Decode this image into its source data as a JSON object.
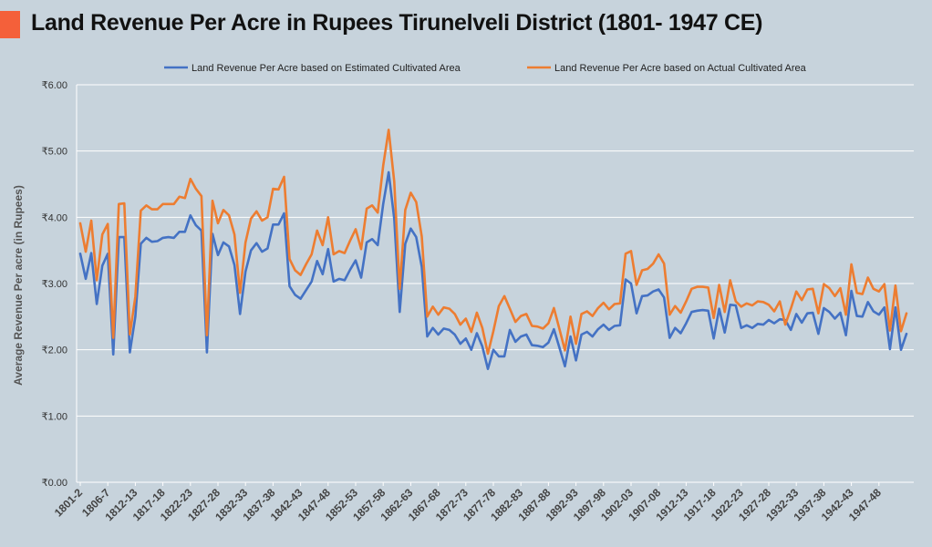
{
  "title": "Land Revenue Per Acre in Rupees Tirunelveli District (1801- 1947 CE)",
  "colors": {
    "background": "#c7d3dc",
    "accent": "#f4603a",
    "grid": "#ffffff"
  },
  "chart_data": {
    "type": "line",
    "title": "Land Revenue Per Acre in Rupees Tirunelveli District (1801- 1947 CE)",
    "xlabel": "",
    "ylabel": "Average Revenue Per acre  (in Rupees)",
    "ylim": [
      0,
      6
    ],
    "yticks": [
      "₹0.00",
      "₹1.00",
      "₹2.00",
      "₹3.00",
      "₹4.00",
      "₹5.00",
      "₹6.00"
    ],
    "grid": "horizontal",
    "legend": "top",
    "x_tick_labels": [
      "1801-2",
      "1806-7",
      "1812-13",
      "1817-18",
      "1822-23",
      "1827-28",
      "1832-33",
      "1837-38",
      "1842-43",
      "1847-48",
      "1852-53",
      "1857-58",
      "1862-63",
      "1867-68",
      "1872-73",
      "1877-78",
      "1882-83",
      "1887-88",
      "1892-93",
      "1897-98",
      "1902-03",
      "1907-08",
      "1912-13",
      "1917-18",
      "1922-23",
      "1927-28",
      "1932-33",
      "1937-38",
      "1942-43",
      "1947-48"
    ],
    "x_tick_indices": [
      0,
      5,
      10,
      15,
      20,
      25,
      30,
      35,
      40,
      45,
      50,
      55,
      60,
      65,
      70,
      75,
      80,
      85,
      90,
      95,
      100,
      105,
      110,
      115,
      120,
      125,
      130,
      135,
      140,
      145
    ],
    "series": [
      {
        "name": "Land Revenue Per Acre based on Estimated Cultivated Area",
        "color": "#4472c4",
        "values": [
          3.45,
          3.07,
          3.46,
          2.69,
          3.27,
          3.45,
          1.93,
          3.7,
          3.7,
          1.96,
          2.5,
          3.6,
          3.69,
          3.63,
          3.64,
          3.69,
          3.7,
          3.69,
          3.78,
          3.78,
          4.03,
          3.88,
          3.8,
          1.96,
          3.75,
          3.43,
          3.62,
          3.56,
          3.28,
          2.54,
          3.18,
          3.5,
          3.61,
          3.48,
          3.53,
          3.89,
          3.89,
          4.06,
          2.96,
          2.83,
          2.77,
          2.9,
          3.03,
          3.34,
          3.14,
          3.52,
          3.03,
          3.07,
          3.05,
          3.21,
          3.35,
          3.09,
          3.62,
          3.67,
          3.58,
          4.2,
          4.68,
          3.98,
          2.57,
          3.6,
          3.83,
          3.7,
          3.25,
          2.2,
          2.33,
          2.23,
          2.32,
          2.3,
          2.23,
          2.09,
          2.17,
          2.0,
          2.25,
          2.05,
          1.71,
          2.0,
          1.9,
          1.9,
          2.3,
          2.12,
          2.2,
          2.23,
          2.07,
          2.06,
          2.04,
          2.11,
          2.31,
          2.03,
          1.75,
          2.2,
          1.84,
          2.23,
          2.27,
          2.2,
          2.31,
          2.38,
          2.3,
          2.36,
          2.37,
          3.06,
          3.0,
          2.55,
          2.81,
          2.82,
          2.88,
          2.91,
          2.79,
          2.18,
          2.33,
          2.25,
          2.4,
          2.57,
          2.59,
          2.6,
          2.59,
          2.17,
          2.62,
          2.26,
          2.68,
          2.67,
          2.33,
          2.37,
          2.33,
          2.39,
          2.38,
          2.45,
          2.4,
          2.46,
          2.45,
          2.3,
          2.54,
          2.41,
          2.55,
          2.56,
          2.24,
          2.63,
          2.57,
          2.47,
          2.56,
          2.22,
          2.89,
          2.51,
          2.5,
          2.72,
          2.58,
          2.53,
          2.64,
          2.01,
          2.64,
          2.0,
          2.24
        ]
      },
      {
        "name": "Land Revenue Per Acre based on Actual Cultivated Area",
        "color": "#ed7d31",
        "values": [
          3.91,
          3.48,
          3.95,
          3.05,
          3.74,
          3.9,
          2.18,
          4.2,
          4.21,
          2.23,
          2.8,
          4.1,
          4.18,
          4.12,
          4.12,
          4.2,
          4.2,
          4.2,
          4.31,
          4.29,
          4.58,
          4.43,
          4.32,
          2.22,
          4.25,
          3.91,
          4.11,
          4.03,
          3.74,
          2.86,
          3.62,
          3.98,
          4.09,
          3.95,
          4.0,
          4.43,
          4.42,
          4.61,
          3.37,
          3.2,
          3.13,
          3.29,
          3.44,
          3.8,
          3.58,
          4.0,
          3.44,
          3.49,
          3.46,
          3.65,
          3.82,
          3.52,
          4.13,
          4.18,
          4.07,
          4.78,
          5.32,
          4.54,
          2.92,
          4.11,
          4.37,
          4.23,
          3.71,
          2.5,
          2.65,
          2.53,
          2.64,
          2.62,
          2.54,
          2.38,
          2.47,
          2.27,
          2.56,
          2.33,
          1.94,
          2.28,
          2.66,
          2.81,
          2.62,
          2.42,
          2.51,
          2.54,
          2.36,
          2.35,
          2.32,
          2.4,
          2.63,
          2.31,
          1.99,
          2.5,
          2.09,
          2.54,
          2.58,
          2.51,
          2.63,
          2.71,
          2.61,
          2.69,
          2.7,
          3.45,
          3.49,
          2.98,
          3.2,
          3.22,
          3.3,
          3.44,
          3.3,
          2.53,
          2.66,
          2.56,
          2.73,
          2.92,
          2.95,
          2.95,
          2.94,
          2.48,
          2.98,
          2.57,
          3.05,
          2.73,
          2.65,
          2.7,
          2.67,
          2.73,
          2.72,
          2.68,
          2.58,
          2.73,
          2.38,
          2.62,
          2.88,
          2.75,
          2.91,
          2.92,
          2.55,
          2.99,
          2.93,
          2.81,
          2.93,
          2.53,
          3.29,
          2.86,
          2.84,
          3.09,
          2.92,
          2.88,
          2.99,
          2.29,
          2.97,
          2.28,
          2.55
        ]
      }
    ]
  }
}
